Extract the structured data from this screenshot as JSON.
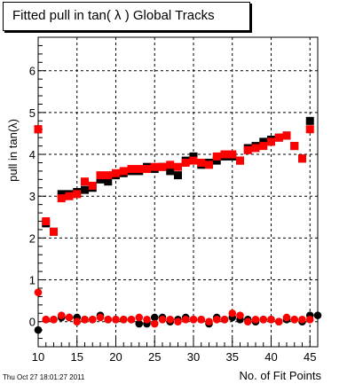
{
  "title": "Fitted pull in tan( λ )  Global Tracks",
  "timestamp": "Thu Oct 27 18:01:27 2011",
  "chart_data": {
    "type": "scatter",
    "title": "Fitted pull in tan( λ )  Global Tracks",
    "xlabel": "No. of Fit Points",
    "ylabel": "pull in tan(λ)",
    "xlim": [
      10,
      46
    ],
    "ylim": [
      -0.6,
      6.8
    ],
    "x_ticks": [
      10,
      15,
      20,
      25,
      30,
      35,
      40,
      45
    ],
    "y_ticks": [
      0,
      1,
      2,
      3,
      4,
      5,
      6
    ],
    "grid": true,
    "x": [
      10,
      11,
      12,
      13,
      14,
      15,
      16,
      17,
      18,
      19,
      20,
      21,
      22,
      23,
      24,
      25,
      26,
      27,
      28,
      29,
      30,
      31,
      32,
      33,
      34,
      35,
      36,
      37,
      38,
      39,
      40,
      41,
      42,
      43,
      44,
      45,
      46
    ],
    "series": [
      {
        "color": "#000000",
        "marker": "square",
        "values": [
          4.6,
          2.35,
          2.15,
          3.05,
          3.05,
          3.1,
          3.15,
          3.2,
          3.4,
          3.35,
          3.5,
          3.55,
          3.6,
          3.6,
          3.7,
          3.65,
          3.7,
          3.6,
          3.5,
          3.85,
          3.95,
          3.75,
          3.8,
          3.85,
          3.95,
          3.95,
          3.85,
          4.15,
          4.2,
          4.3,
          4.35,
          4.4,
          4.45,
          4.2,
          3.9,
          4.8,
          null
        ]
      },
      {
        "color": "#ff0000",
        "marker": "square",
        "values": [
          4.6,
          2.4,
          2.15,
          2.95,
          3.0,
          3.05,
          3.35,
          3.25,
          3.5,
          3.5,
          3.55,
          3.6,
          3.65,
          3.65,
          3.65,
          3.7,
          3.7,
          3.75,
          3.7,
          3.8,
          3.85,
          3.8,
          3.75,
          3.95,
          4.0,
          4.0,
          3.85,
          4.1,
          4.15,
          4.2,
          4.3,
          4.4,
          4.45,
          4.2,
          3.9,
          4.6,
          null
        ]
      },
      {
        "color": "#000000",
        "marker": "circle",
        "values": [
          -0.2,
          0.05,
          0.05,
          0.1,
          0.1,
          0.1,
          0.05,
          0.05,
          0.15,
          0.05,
          0.05,
          0.05,
          0.05,
          -0.05,
          -0.05,
          0.1,
          0.1,
          0.0,
          0.05,
          0.1,
          0.05,
          0.05,
          -0.05,
          0.1,
          0.05,
          0.1,
          0.05,
          0.05,
          0.0,
          0.05,
          0.05,
          0.0,
          0.05,
          0.05,
          0.0,
          0.15,
          0.15
        ]
      },
      {
        "color": "#ff0000",
        "marker": "circle",
        "values": [
          0.7,
          0.05,
          0.05,
          0.15,
          0.1,
          0.0,
          0.05,
          0.05,
          0.1,
          0.05,
          0.05,
          0.05,
          0.05,
          0.1,
          0.05,
          -0.05,
          0.05,
          0.05,
          0.0,
          0.05,
          0.05,
          0.05,
          0.0,
          0.05,
          0.05,
          0.2,
          0.15,
          0.0,
          0.05,
          0.05,
          0.05,
          0.0,
          0.1,
          0.05,
          0.05,
          0.05,
          null
        ]
      }
    ]
  }
}
